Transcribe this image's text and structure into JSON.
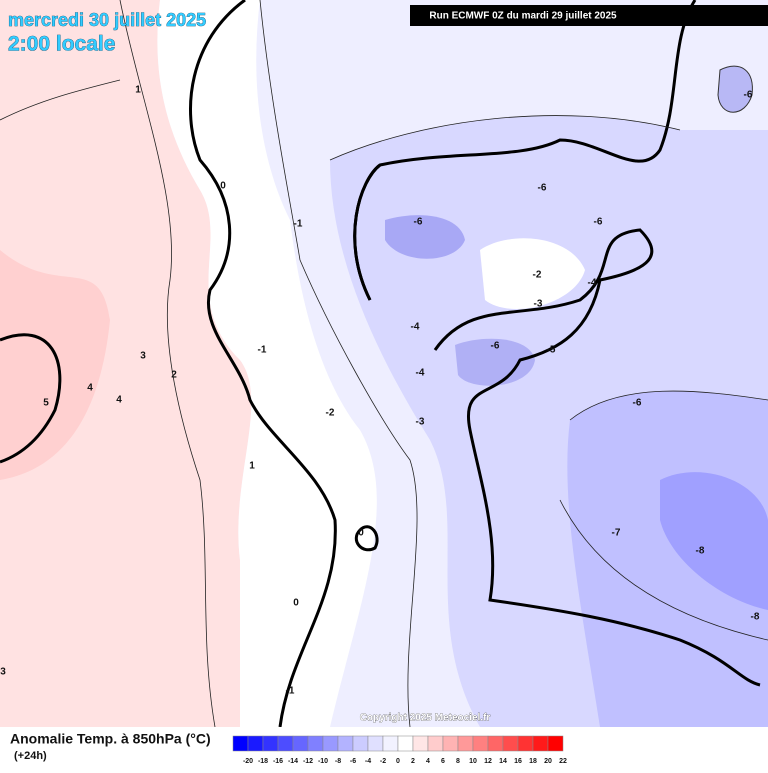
{
  "header": {
    "date": "mercredi 30 juillet 2025",
    "time": "2:00 locale",
    "run": "Run ECMWF 0Z du mardi 29 juillet 2025"
  },
  "copyright": "Copyright 2025 Meteociel.fr",
  "legend": {
    "title": "Anomalie Temp. à 850hPa (°C)",
    "step": "(+24h)",
    "ticks": [
      -20,
      -18,
      -16,
      -14,
      -12,
      -10,
      -8,
      -6,
      -4,
      -2,
      0,
      2,
      4,
      6,
      8,
      10,
      12,
      14,
      16,
      18,
      20,
      22
    ],
    "colors": [
      "#0000ff",
      "#1a1aff",
      "#3333ff",
      "#4d4dff",
      "#6666ff",
      "#8080ff",
      "#9999ff",
      "#b3b3ff",
      "#ccccff",
      "#e0e0ff",
      "#f2f2ff",
      "#ffffff",
      "#ffe6e6",
      "#ffcccc",
      "#ffb3b3",
      "#ff9999",
      "#ff8080",
      "#ff6666",
      "#ff4d4d",
      "#ff3333",
      "#ff1a1a",
      "#ff0000"
    ]
  },
  "contour_labels": [
    1,
    0,
    -1,
    -6,
    -6,
    -6,
    -6,
    -2,
    -3,
    -4,
    -4,
    -1,
    3,
    2,
    4,
    4,
    5,
    -6,
    -5,
    -4,
    -2,
    -3,
    -6,
    1,
    0,
    -7,
    -8,
    0,
    -8,
    -1,
    3
  ]
}
